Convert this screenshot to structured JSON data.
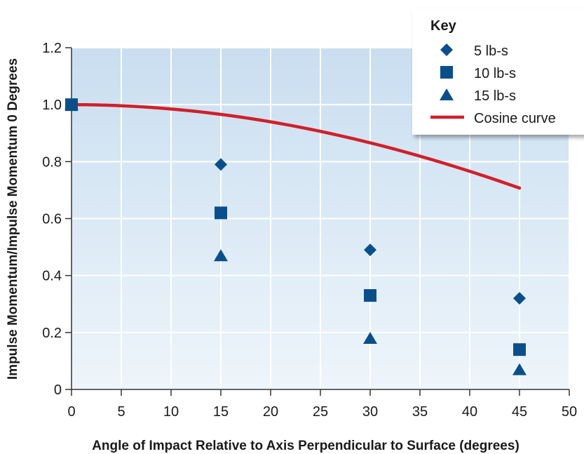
{
  "chart_data": {
    "type": "scatter",
    "title": "",
    "xlabel": "Angle of Impact Relative to Axis Perpendicular to Surface (degrees)",
    "ylabel": "Impulse Momentum/Impulse Momentum 0 Degrees",
    "xlim": [
      0,
      50
    ],
    "ylim": [
      0,
      1.2
    ],
    "x_ticks": [
      "0",
      "5",
      "10",
      "15",
      "20",
      "25",
      "30",
      "35",
      "40",
      "45",
      "50"
    ],
    "y_ticks": [
      "0",
      "0.2",
      "0.4",
      "0.6",
      "0.8",
      "1.0",
      "1.2"
    ],
    "grid": true,
    "legend_position": "top-right",
    "legend_title": "Key",
    "series": [
      {
        "name": "5 lb-s",
        "marker": "diamond",
        "color": "#0b4f8a",
        "points": [
          [
            0,
            1.0
          ],
          [
            15,
            0.79
          ],
          [
            30,
            0.49
          ],
          [
            45,
            0.32
          ]
        ]
      },
      {
        "name": "10 lb-s",
        "marker": "square",
        "color": "#0b4f8a",
        "points": [
          [
            0,
            1.0
          ],
          [
            15,
            0.62
          ],
          [
            30,
            0.33
          ],
          [
            45,
            0.14
          ]
        ]
      },
      {
        "name": "15 lb-s",
        "marker": "triangle",
        "color": "#0b4f8a",
        "points": [
          [
            0,
            1.0
          ],
          [
            15,
            0.47
          ],
          [
            30,
            0.18
          ],
          [
            45,
            0.07
          ]
        ]
      },
      {
        "name": "Cosine curve",
        "marker": "line",
        "color": "#d0202a",
        "function": "cos",
        "domain": [
          0,
          45
        ]
      }
    ],
    "plot_background": [
      "#c9def0",
      "#eef5fb"
    ]
  }
}
